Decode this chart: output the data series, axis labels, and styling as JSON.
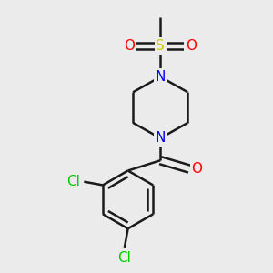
{
  "background_color": "#ebebeb",
  "bond_color": "#1a1a1a",
  "bond_width": 1.8,
  "atom_colors": {
    "C": "#000000",
    "N": "#0000ee",
    "O": "#ff0000",
    "S": "#cccc00",
    "Cl": "#00cc00"
  }
}
